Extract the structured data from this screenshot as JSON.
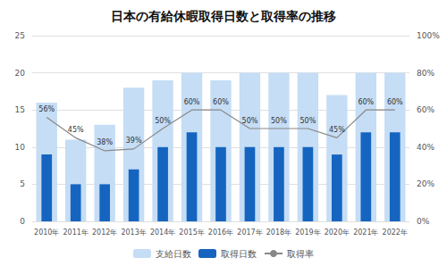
{
  "chart_data": {
    "type": "bar",
    "title": "日本の有給休暇取得日数と取得率の推移",
    "categories": [
      "2010年",
      "2011年",
      "2012年",
      "2013年",
      "2014年",
      "2015年",
      "2016年",
      "2017年",
      "2018年",
      "2019年",
      "2020年",
      "2021年",
      "2022年"
    ],
    "series": [
      {
        "name": "支給日数",
        "type": "bar",
        "color": "#c5ddf5",
        "values": [
          16,
          11,
          13,
          18,
          19,
          20,
          19,
          20,
          20,
          20,
          17,
          20,
          20
        ]
      },
      {
        "name": "取得日数",
        "type": "bar",
        "color": "#1565c0",
        "values": [
          9,
          5,
          5,
          7,
          10,
          12,
          10,
          10,
          10,
          10,
          9,
          12,
          12
        ]
      },
      {
        "name": "取得率",
        "type": "line",
        "axis": "y2",
        "color": "#888888",
        "values": [
          0.56,
          0.45,
          0.38,
          0.39,
          0.5,
          0.6,
          0.6,
          0.5,
          0.5,
          0.5,
          0.45,
          0.6,
          0.6
        ],
        "value_labels": [
          "56%",
          "45%",
          "38%",
          "39%",
          "50%",
          "60%",
          "60%",
          "50%",
          "50%",
          "50%",
          "45%",
          "60%",
          "60%"
        ],
        "data_labels": true
      }
    ],
    "ylim": [
      0,
      25
    ],
    "yticks": [
      0,
      5,
      10,
      15,
      20,
      25
    ],
    "y2lim": [
      0,
      1.0
    ],
    "y2ticks": [
      {
        "value": 0.0,
        "label": "0%"
      },
      {
        "value": 0.2,
        "label": "20%"
      },
      {
        "value": 0.4,
        "label": "40%"
      },
      {
        "value": 0.6,
        "label": "60%"
      },
      {
        "value": 0.8,
        "label": "80%"
      },
      {
        "value": 1.0,
        "label": "100%"
      }
    ],
    "grid": true,
    "legend": "bottom"
  }
}
